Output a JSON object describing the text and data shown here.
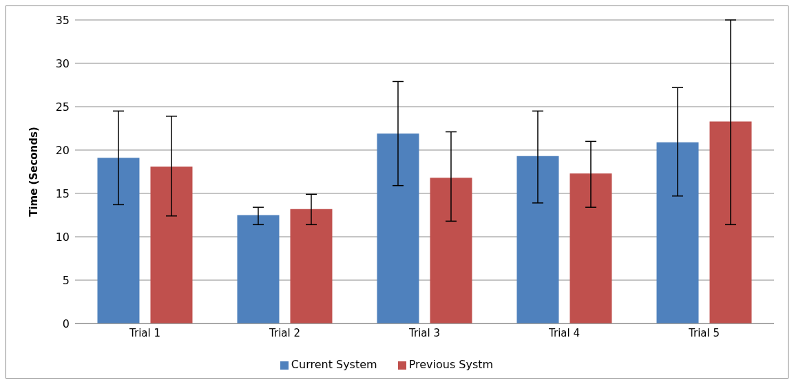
{
  "chart_data": {
    "type": "bar",
    "ylabel": "Time (Seconds)",
    "categories": [
      "Trial 1",
      "Trial 2",
      "Trial 3",
      "Trial 4",
      "Trial 5"
    ],
    "series": [
      {
        "name": "Current System",
        "color": "#4f81bd",
        "values": [
          19.1,
          12.5,
          21.9,
          19.3,
          20.9
        ],
        "errors": [
          [
            13.7,
            24.5
          ],
          [
            11.4,
            13.4
          ],
          [
            15.9,
            27.9
          ],
          [
            13.9,
            24.5
          ],
          [
            14.7,
            27.2
          ]
        ]
      },
      {
        "name": "Previous Systm",
        "color": "#c0504d",
        "values": [
          18.1,
          13.2,
          16.8,
          17.3,
          23.3
        ],
        "errors": [
          [
            12.4,
            23.9
          ],
          [
            11.4,
            14.9
          ],
          [
            11.8,
            22.1
          ],
          [
            13.4,
            21.0
          ],
          [
            11.4,
            35
          ]
        ]
      }
    ],
    "ylim": [
      0,
      35
    ],
    "yticks": [
      0,
      5,
      10,
      15,
      20,
      25,
      30,
      35
    ],
    "grid": "y",
    "legend": "bottom"
  }
}
